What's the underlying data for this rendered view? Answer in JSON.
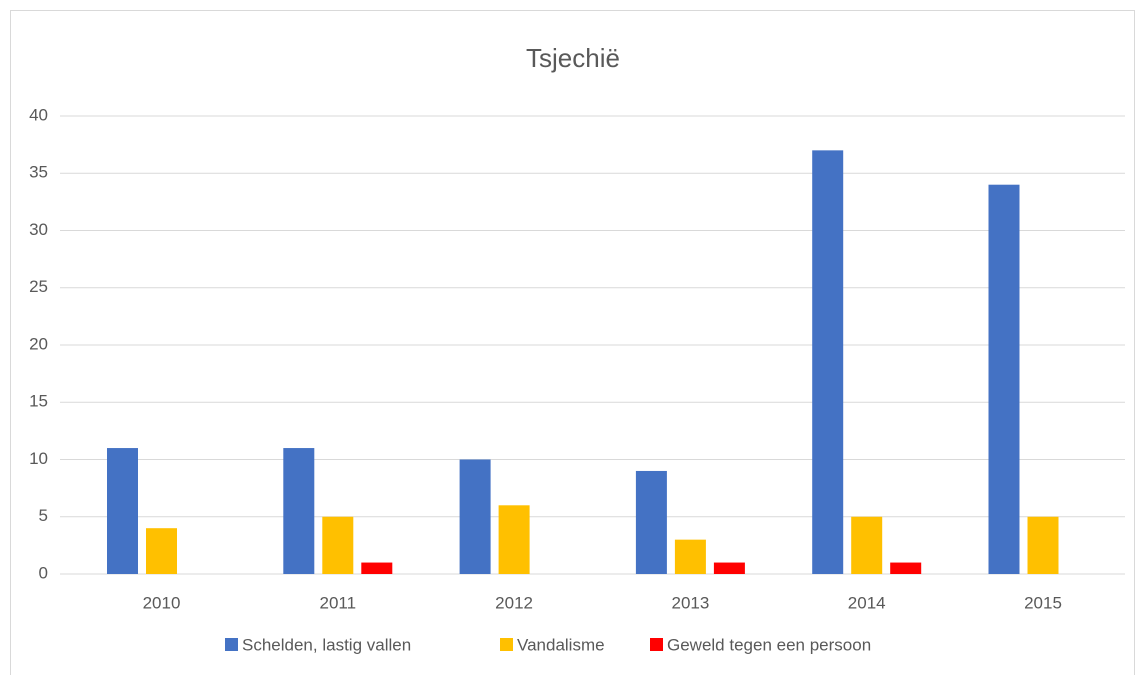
{
  "chart_data": {
    "type": "bar",
    "title": "Tsjechië",
    "categories": [
      "2010",
      "2011",
      "2012",
      "2013",
      "2014",
      "2015"
    ],
    "series": [
      {
        "name": "Schelden, lastig vallen",
        "color": "#4472c4",
        "values": [
          11,
          11,
          10,
          9,
          37,
          34
        ]
      },
      {
        "name": "Vandalisme",
        "color": "#ffc000",
        "values": [
          4,
          5,
          6,
          3,
          5,
          5
        ]
      },
      {
        "name": "Geweld tegen een persoon",
        "color": "#ff0000",
        "values": [
          0,
          1,
          0,
          1,
          1,
          0
        ]
      }
    ],
    "ylim": [
      0,
      40
    ],
    "yticks": [
      0,
      5,
      10,
      15,
      20,
      25,
      30,
      35,
      40
    ],
    "grid": true,
    "legend": "bottom"
  }
}
